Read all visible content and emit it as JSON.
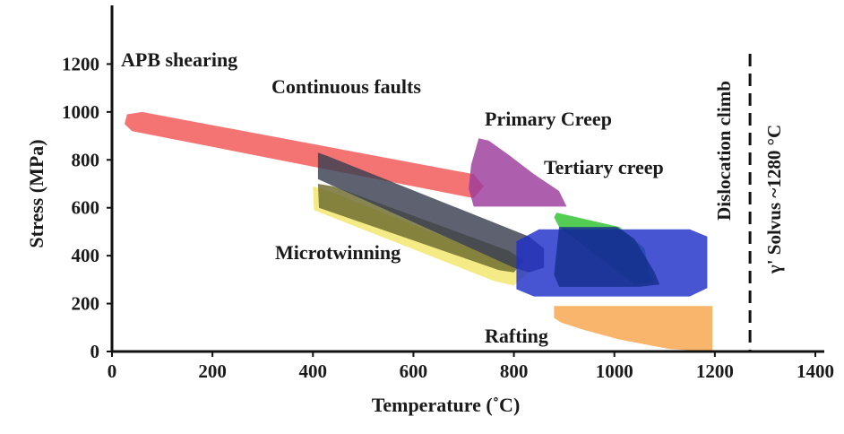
{
  "chart_data": {
    "type": "area",
    "title": "",
    "xlabel": "Temperature (˚C)",
    "ylabel": "Stress (MPa)",
    "xlim": [
      0,
      1400
    ],
    "ylim": [
      0,
      1400
    ],
    "xticks": [
      0,
      200,
      400,
      600,
      800,
      1000,
      1200,
      1400
    ],
    "yticks": [
      0,
      200,
      400,
      600,
      800,
      1000,
      1200
    ],
    "grid": false,
    "legend": "none",
    "regions": [
      {
        "name": "Rafting",
        "color": "#f7a54a",
        "label": "Rafting",
        "outline": [
          [
            880,
            190
          ],
          [
            1195,
            190
          ],
          [
            1195,
            0
          ],
          [
            1110,
            10
          ],
          [
            1010,
            50
          ],
          [
            940,
            90
          ],
          [
            895,
            120
          ],
          [
            880,
            140
          ]
        ]
      },
      {
        "name": "Microtwinning (yellow)",
        "color": "#f2e56b",
        "label": "Microtwinning",
        "outline": [
          [
            400,
            690
          ],
          [
            445,
            660
          ],
          [
            800,
            360
          ],
          [
            830,
            330
          ],
          [
            800,
            275
          ],
          [
            760,
            295
          ],
          [
            402,
            590
          ]
        ]
      },
      {
        "name": "Microtwinning (olive)",
        "color": "#6d6b2d",
        "label": "",
        "outline": [
          [
            410,
            700
          ],
          [
            440,
            690
          ],
          [
            790,
            420
          ],
          [
            820,
            380
          ],
          [
            800,
            330
          ],
          [
            770,
            340
          ],
          [
            412,
            600
          ]
        ]
      },
      {
        "name": "APB shearing",
        "color": "#f25454",
        "label": "APB shearing",
        "outline": [
          [
            30,
            990
          ],
          [
            60,
            1000
          ],
          [
            720,
            740
          ],
          [
            740,
            690
          ],
          [
            720,
            640
          ],
          [
            40,
            920
          ],
          [
            25,
            950
          ]
        ]
      },
      {
        "name": "Continuous faults",
        "color": "#3a4050",
        "label": "Continuous faults",
        "outline": [
          [
            410,
            830
          ],
          [
            430,
            815
          ],
          [
            830,
            480
          ],
          [
            860,
            430
          ],
          [
            860,
            350
          ],
          [
            830,
            330
          ],
          [
            800,
            350
          ],
          [
            410,
            720
          ]
        ]
      },
      {
        "name": "Primary Creep",
        "color": "#9b3a9b",
        "label": "Primary Creep",
        "outline": [
          [
            730,
            890
          ],
          [
            750,
            880
          ],
          [
            790,
            820
          ],
          [
            840,
            740
          ],
          [
            890,
            670
          ],
          [
            905,
            605
          ],
          [
            720,
            605
          ],
          [
            710,
            680
          ],
          [
            715,
            780
          ]
        ]
      },
      {
        "name": "Tertiary creep",
        "color": "#2ec22e",
        "label": "Tertiary creep",
        "outline": [
          [
            885,
            580
          ],
          [
            1010,
            520
          ],
          [
            1060,
            430
          ],
          [
            1070,
            320
          ],
          [
            1080,
            290
          ],
          [
            1040,
            280
          ],
          [
            890,
            520
          ],
          [
            880,
            560
          ]
        ]
      },
      {
        "name": "Dislocation climb (blue)",
        "color": "#2030c8",
        "label": "",
        "outline": [
          [
            850,
            510
          ],
          [
            1150,
            510
          ],
          [
            1185,
            480
          ],
          [
            1185,
            265
          ],
          [
            1150,
            230
          ],
          [
            840,
            230
          ],
          [
            805,
            260
          ],
          [
            805,
            460
          ]
        ]
      },
      {
        "name": "Dislocation climb (dark)",
        "color": "#15308c",
        "label": "",
        "outline": [
          [
            890,
            520
          ],
          [
            1005,
            520
          ],
          [
            1040,
            470
          ],
          [
            1080,
            330
          ],
          [
            1090,
            280
          ],
          [
            1050,
            270
          ],
          [
            890,
            270
          ],
          [
            880,
            320
          ]
        ]
      }
    ],
    "vline": {
      "x": 1270,
      "label_left": "Dislocation climb",
      "label_right": "γ' Solvus ~1280 °C"
    }
  }
}
